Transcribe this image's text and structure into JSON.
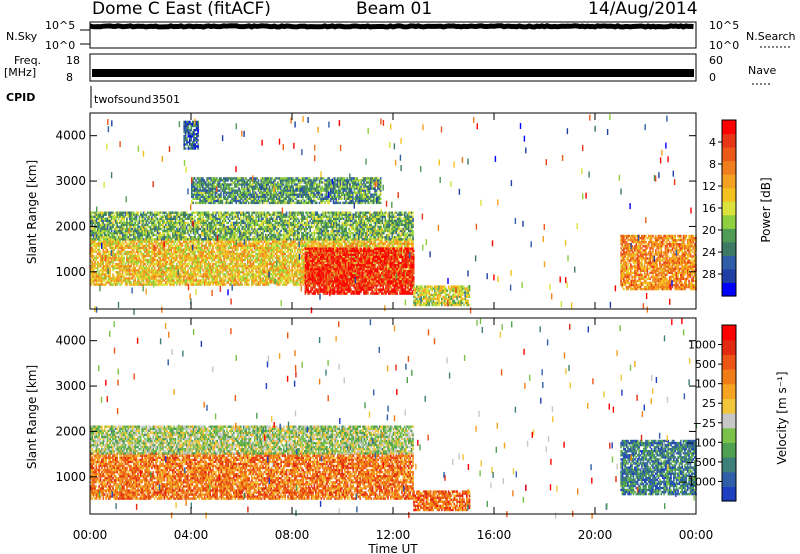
{
  "header": {
    "station": "Dome C East (fitACF)",
    "beam": "Beam 01",
    "date": "14/Aug/2014"
  },
  "chart_data": [
    {
      "type": "line",
      "label": "N.Sky",
      "right_label": "N.Search",
      "y_ticks_left": [
        "10^5",
        "10^0"
      ],
      "y_ticks_right": [
        "10^5",
        "10^0"
      ],
      "ylim": [
        0,
        5
      ],
      "x_range_hours": [
        0,
        24
      ],
      "description_values": {
        "level": 4.3
      }
    },
    {
      "type": "line",
      "label_top": "Freq.",
      "label_bottom": "[MHz]",
      "right_label": "Nave",
      "y_ticks_left": [
        "18",
        "8"
      ],
      "y_ticks_right": [
        "60",
        "0"
      ],
      "ylim": [
        8,
        18
      ],
      "x_range_hours": [
        0,
        24
      ],
      "description_values": {
        "freq_mhz": 12
      }
    },
    {
      "type": "table",
      "label": "CPID",
      "entries": [
        {
          "name": "twofsound",
          "id": "3501",
          "start_hour": 0
        }
      ]
    },
    {
      "type": "heatmap",
      "parameter": "power",
      "ylabel": "Slant Range [km]",
      "y_ticks": [
        1000,
        2000,
        3000,
        4000
      ],
      "ylim": [
        180,
        4500
      ],
      "x_range_hours": [
        0,
        24
      ],
      "colorbar": {
        "label": "Power [dB]",
        "ticks": [
          "4",
          "8",
          "12",
          "16",
          "20",
          "24",
          "28"
        ],
        "colors": [
          "#0000ff",
          "#1f3fa4",
          "#2e5ea8",
          "#3c7a63",
          "#509b55",
          "#8fd040",
          "#dce23c",
          "#f3c21f",
          "#f5a222",
          "#f07e1c",
          "#ec5a1a",
          "#e83516",
          "#ff0000"
        ]
      },
      "regions": [
        {
          "t": [
            0.0,
            12.8
          ],
          "r": [
            700,
            1700
          ],
          "level": 0.58
        },
        {
          "t": [
            0.0,
            12.8
          ],
          "r": [
            1700,
            2300
          ],
          "level": 0.38
        },
        {
          "t": [
            3.7,
            4.3
          ],
          "r": [
            3700,
            4300
          ],
          "level": 0.2
        },
        {
          "t": [
            4.0,
            11.5
          ],
          "r": [
            2500,
            3050
          ],
          "level": 0.32
        },
        {
          "t": [
            8.5,
            12.8
          ],
          "r": [
            500,
            1500
          ],
          "level": 0.92
        },
        {
          "t": [
            12.8,
            15.0
          ],
          "r": [
            250,
            700
          ],
          "level": 0.5
        },
        {
          "t": [
            21.0,
            24.0
          ],
          "r": [
            600,
            1800
          ],
          "level": 0.7
        }
      ]
    },
    {
      "type": "heatmap",
      "parameter": "velocity",
      "ylabel": "Slant Range [km]",
      "y_ticks": [
        1000,
        2000,
        3000,
        4000
      ],
      "ylim": [
        180,
        4500
      ],
      "x_range_hours": [
        0,
        24
      ],
      "colorbar": {
        "label": "Velocity [m s⁻¹]",
        "ticks": [
          "1000",
          "500",
          "100",
          "25",
          "−25",
          "−100",
          "−500",
          "−1000"
        ],
        "colors": [
          "#1e3fbf",
          "#2f5fa8",
          "#3e7f7a",
          "#4fa050",
          "#7bc24b",
          "#c7c7c7",
          "#f2c63a",
          "#f5a422",
          "#f07d18",
          "#ec5514",
          "#e12a0f",
          "#ff0000"
        ]
      },
      "regions": [
        {
          "t": [
            0.0,
            12.8
          ],
          "r": [
            500,
            1500
          ],
          "level": 0.72
        },
        {
          "t": [
            0.0,
            12.8
          ],
          "r": [
            1500,
            2100
          ],
          "level": 0.42
        },
        {
          "t": [
            12.8,
            15.0
          ],
          "r": [
            250,
            700
          ],
          "level": 0.75
        },
        {
          "t": [
            21.0,
            24.0
          ],
          "r": [
            600,
            1800
          ],
          "level": 0.2
        }
      ]
    }
  ],
  "x_axis": {
    "ticks": [
      "00:00",
      "04:00",
      "08:00",
      "12:00",
      "16:00",
      "20:00",
      "00:00"
    ],
    "label": "Time UT"
  }
}
